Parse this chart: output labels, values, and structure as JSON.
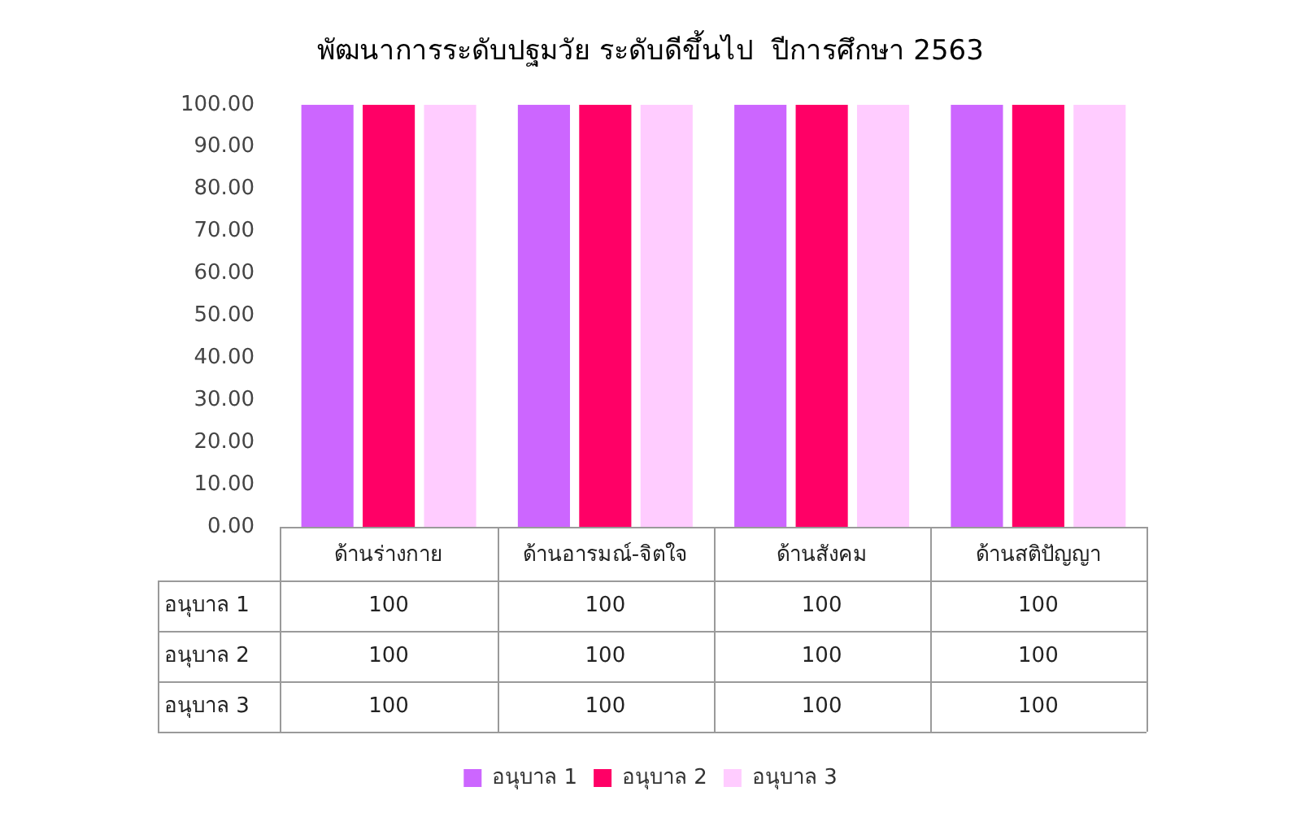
{
  "chart_data": {
    "type": "bar",
    "title": "พัฒนาการระดับปฐมวัย ระดับดีขึ้นไป  ปีการศึกษา 2563",
    "categories": [
      "ด้านร่างกาย",
      "ด้านอารมณ์-จิตใจ",
      "ด้านสังคม",
      "ด้านสติปัญญา"
    ],
    "series": [
      {
        "name": "อนุบาล 1",
        "color": "#cc66ff",
        "values": [
          100,
          100,
          100,
          100
        ]
      },
      {
        "name": "อนุบาล 2",
        "color": "#ff0066",
        "values": [
          100,
          100,
          100,
          100
        ]
      },
      {
        "name": "อนุบาล 3",
        "color": "#ffccff",
        "values": [
          100,
          100,
          100,
          100
        ]
      }
    ],
    "ylim": [
      0,
      100
    ],
    "yticks": [
      {
        "value": 0,
        "label": "0.00"
      },
      {
        "value": 10,
        "label": "10.00"
      },
      {
        "value": 20,
        "label": "20.00"
      },
      {
        "value": 30,
        "label": "30.00"
      },
      {
        "value": 40,
        "label": "40.00"
      },
      {
        "value": 50,
        "label": "50.00"
      },
      {
        "value": 60,
        "label": "60.00"
      },
      {
        "value": 70,
        "label": "70.00"
      },
      {
        "value": 80,
        "label": "80.00"
      },
      {
        "value": 90,
        "label": "90.00"
      },
      {
        "value": 100,
        "label": "100.00"
      }
    ],
    "data_labels": true,
    "grid": false,
    "legend": "bottom"
  }
}
